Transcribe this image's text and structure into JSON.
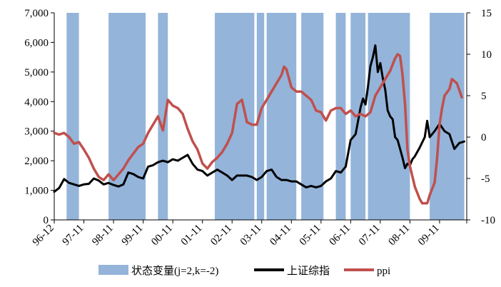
{
  "chart_data": {
    "type": "line",
    "x_tick_labels": [
      "96-12",
      "97-11",
      "98-11",
      "99-11",
      "00-11",
      "01-11",
      "02-11",
      "03-11",
      "04-11",
      "05-11",
      "06-11",
      "07-11",
      "08-11",
      "09-11"
    ],
    "y_left": {
      "ylim": [
        0,
        7000
      ],
      "tick_labels": [
        "0",
        "1,000",
        "2,000",
        "3,000",
        "4,000",
        "5,000",
        "6,000",
        "7,000"
      ]
    },
    "y_right": {
      "ylim": [
        -10,
        15
      ],
      "tick_labels": [
        "-10",
        "-5",
        "0",
        "5",
        "10",
        "15"
      ]
    },
    "grid": false,
    "legend": {
      "position": "bottom"
    },
    "regime_bands": {
      "name": "状态变量(j=2,k=-2)",
      "color": "#94b4da",
      "periods": [
        [
          "1997-05",
          "1997-10"
        ],
        [
          "1998-10",
          "2000-01"
        ],
        [
          "2000-06",
          "2000-10"
        ],
        [
          "2002-05",
          "2003-09"
        ],
        [
          "2003-10",
          "2004-01"
        ],
        [
          "2004-02",
          "2005-02"
        ],
        [
          "2005-04",
          "2006-01"
        ],
        [
          "2006-06",
          "2006-10"
        ],
        [
          "2006-12",
          "2007-06"
        ],
        [
          "2007-07",
          "2008-12"
        ],
        [
          "2009-08",
          "2010-10"
        ]
      ]
    },
    "series": [
      {
        "name": "上证综指",
        "axis": "left",
        "color": "#000000",
        "points": [
          [
            "1996-12",
            950
          ],
          [
            "1997-02",
            1080
          ],
          [
            "1997-04",
            1380
          ],
          [
            "1997-06",
            1250
          ],
          [
            "1997-08",
            1200
          ],
          [
            "1997-10",
            1150
          ],
          [
            "1997-12",
            1200
          ],
          [
            "1998-02",
            1220
          ],
          [
            "1998-04",
            1400
          ],
          [
            "1998-06",
            1330
          ],
          [
            "1998-08",
            1200
          ],
          [
            "1998-10",
            1250
          ],
          [
            "1998-12",
            1180
          ],
          [
            "1999-02",
            1130
          ],
          [
            "1999-04",
            1200
          ],
          [
            "1999-06",
            1600
          ],
          [
            "1999-08",
            1550
          ],
          [
            "1999-10",
            1450
          ],
          [
            "1999-12",
            1400
          ],
          [
            "2000-02",
            1800
          ],
          [
            "2000-04",
            1850
          ],
          [
            "2000-06",
            1950
          ],
          [
            "2000-08",
            2000
          ],
          [
            "2000-10",
            1950
          ],
          [
            "2000-12",
            2050
          ],
          [
            "2001-02",
            2000
          ],
          [
            "2001-04",
            2100
          ],
          [
            "2001-06",
            2200
          ],
          [
            "2001-08",
            1900
          ],
          [
            "2001-10",
            1700
          ],
          [
            "2001-12",
            1650
          ],
          [
            "2002-02",
            1500
          ],
          [
            "2002-04",
            1600
          ],
          [
            "2002-06",
            1700
          ],
          [
            "2002-08",
            1600
          ],
          [
            "2002-10",
            1500
          ],
          [
            "2002-12",
            1350
          ],
          [
            "2003-02",
            1500
          ],
          [
            "2003-04",
            1500
          ],
          [
            "2003-06",
            1500
          ],
          [
            "2003-08",
            1450
          ],
          [
            "2003-10",
            1350
          ],
          [
            "2003-12",
            1450
          ],
          [
            "2004-02",
            1650
          ],
          [
            "2004-04",
            1700
          ],
          [
            "2004-06",
            1450
          ],
          [
            "2004-08",
            1350
          ],
          [
            "2004-10",
            1350
          ],
          [
            "2004-12",
            1300
          ],
          [
            "2005-02",
            1300
          ],
          [
            "2005-04",
            1200
          ],
          [
            "2005-06",
            1100
          ],
          [
            "2005-08",
            1150
          ],
          [
            "2005-10",
            1100
          ],
          [
            "2005-12",
            1150
          ],
          [
            "2006-02",
            1300
          ],
          [
            "2006-04",
            1400
          ],
          [
            "2006-06",
            1650
          ],
          [
            "2006-08",
            1600
          ],
          [
            "2006-10",
            1800
          ],
          [
            "2006-12",
            2700
          ],
          [
            "2007-02",
            2900
          ],
          [
            "2007-04",
            3800
          ],
          [
            "2007-05",
            4100
          ],
          [
            "2007-06",
            3900
          ],
          [
            "2007-07",
            4500
          ],
          [
            "2007-08",
            5200
          ],
          [
            "2007-09",
            5500
          ],
          [
            "2007-10",
            5900
          ],
          [
            "2007-11",
            5000
          ],
          [
            "2007-12",
            5300
          ],
          [
            "2008-01",
            4800
          ],
          [
            "2008-02",
            4400
          ],
          [
            "2008-03",
            3700
          ],
          [
            "2008-04",
            3500
          ],
          [
            "2008-05",
            3400
          ],
          [
            "2008-06",
            2800
          ],
          [
            "2008-07",
            2700
          ],
          [
            "2008-08",
            2400
          ],
          [
            "2008-09",
            2100
          ],
          [
            "2008-10",
            1750
          ],
          [
            "2008-11",
            1900
          ],
          [
            "2008-12",
            1850
          ],
          [
            "2009-01",
            2050
          ],
          [
            "2009-02",
            2150
          ],
          [
            "2009-04",
            2450
          ],
          [
            "2009-06",
            2800
          ],
          [
            "2009-07",
            3350
          ],
          [
            "2009-08",
            2800
          ],
          [
            "2009-10",
            3000
          ],
          [
            "2009-12",
            3250
          ],
          [
            "2010-02",
            3000
          ],
          [
            "2010-04",
            2900
          ],
          [
            "2010-06",
            2400
          ],
          [
            "2010-08",
            2600
          ],
          [
            "2010-10",
            2650
          ]
        ]
      },
      {
        "name": "ppi",
        "axis": "right",
        "color": "#c0504d",
        "points": [
          [
            "1996-12",
            0.5
          ],
          [
            "1997-02",
            0.3
          ],
          [
            "1997-04",
            0.5
          ],
          [
            "1997-06",
            0.0
          ],
          [
            "1997-08",
            -0.8
          ],
          [
            "1997-10",
            -0.6
          ],
          [
            "1997-12",
            -1.5
          ],
          [
            "1998-02",
            -2.5
          ],
          [
            "1998-04",
            -3.8
          ],
          [
            "1998-06",
            -4.8
          ],
          [
            "1998-08",
            -5.2
          ],
          [
            "1998-10",
            -4.5
          ],
          [
            "1998-12",
            -5.2
          ],
          [
            "1999-02",
            -4.5
          ],
          [
            "1999-04",
            -3.8
          ],
          [
            "1999-06",
            -2.8
          ],
          [
            "1999-08",
            -2.0
          ],
          [
            "1999-10",
            -1.2
          ],
          [
            "1999-12",
            -0.8
          ],
          [
            "2000-02",
            0.5
          ],
          [
            "2000-04",
            1.5
          ],
          [
            "2000-06",
            2.5
          ],
          [
            "2000-08",
            0.8
          ],
          [
            "2000-10",
            4.5
          ],
          [
            "2000-12",
            3.8
          ],
          [
            "2001-02",
            3.5
          ],
          [
            "2001-04",
            2.8
          ],
          [
            "2001-06",
            1.0
          ],
          [
            "2001-08",
            -0.5
          ],
          [
            "2001-10",
            -1.5
          ],
          [
            "2001-12",
            -3.2
          ],
          [
            "2002-02",
            -3.8
          ],
          [
            "2002-04",
            -3.0
          ],
          [
            "2002-06",
            -2.5
          ],
          [
            "2002-08",
            -1.8
          ],
          [
            "2002-10",
            -0.8
          ],
          [
            "2002-12",
            0.5
          ],
          [
            "2003-02",
            4.0
          ],
          [
            "2003-04",
            4.5
          ],
          [
            "2003-06",
            1.8
          ],
          [
            "2003-08",
            1.5
          ],
          [
            "2003-10",
            1.5
          ],
          [
            "2003-12",
            3.5
          ],
          [
            "2004-02",
            4.5
          ],
          [
            "2004-04",
            5.5
          ],
          [
            "2004-06",
            6.5
          ],
          [
            "2004-08",
            7.5
          ],
          [
            "2004-09",
            8.5
          ],
          [
            "2004-10",
            8.2
          ],
          [
            "2004-12",
            6.0
          ],
          [
            "2005-02",
            5.5
          ],
          [
            "2005-04",
            5.5
          ],
          [
            "2005-06",
            5.0
          ],
          [
            "2005-08",
            4.5
          ],
          [
            "2005-10",
            3.2
          ],
          [
            "2005-12",
            3.0
          ],
          [
            "2006-02",
            2.0
          ],
          [
            "2006-04",
            3.2
          ],
          [
            "2006-06",
            3.5
          ],
          [
            "2006-08",
            3.5
          ],
          [
            "2006-10",
            2.8
          ],
          [
            "2006-12",
            3.2
          ],
          [
            "2007-02",
            2.5
          ],
          [
            "2007-04",
            2.8
          ],
          [
            "2007-06",
            2.5
          ],
          [
            "2007-08",
            3.0
          ],
          [
            "2007-10",
            5.0
          ],
          [
            "2007-12",
            6.0
          ],
          [
            "2008-02",
            7.0
          ],
          [
            "2008-04",
            8.0
          ],
          [
            "2008-06",
            9.5
          ],
          [
            "2008-07",
            10.0
          ],
          [
            "2008-08",
            9.8
          ],
          [
            "2008-09",
            7.5
          ],
          [
            "2008-10",
            4.0
          ],
          [
            "2008-11",
            -1.5
          ],
          [
            "2008-12",
            -3.5
          ],
          [
            "2009-02",
            -6.0
          ],
          [
            "2009-04",
            -7.5
          ],
          [
            "2009-05",
            -8.0
          ],
          [
            "2009-07",
            -8.0
          ],
          [
            "2009-08",
            -7.0
          ],
          [
            "2009-10",
            -5.5
          ],
          [
            "2009-11",
            -2.5
          ],
          [
            "2009-12",
            1.5
          ],
          [
            "2010-01",
            3.5
          ],
          [
            "2010-02",
            5.0
          ],
          [
            "2010-04",
            5.8
          ],
          [
            "2010-05",
            7.0
          ],
          [
            "2010-07",
            6.5
          ],
          [
            "2010-09",
            4.8
          ]
        ]
      }
    ]
  }
}
